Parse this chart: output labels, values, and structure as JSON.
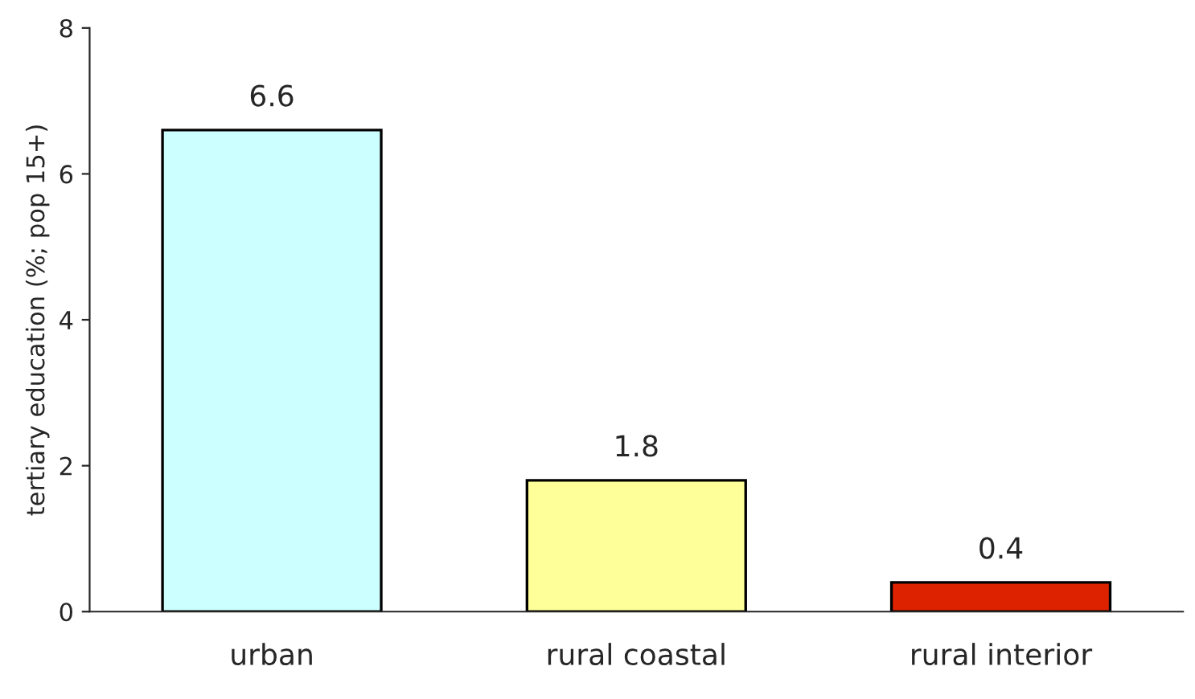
{
  "chart_data": {
    "type": "bar",
    "ylabel": "tertiary education (%; pop 15+)",
    "categories": [
      "urban",
      "rural coastal",
      "rural interior"
    ],
    "values": [
      6.6,
      1.8,
      0.4
    ],
    "colors": [
      "#ccffff",
      "#ffff99",
      "#dd2200"
    ],
    "data_labels": true,
    "ylim": [
      0,
      8
    ],
    "yticks": [
      0,
      2,
      4,
      6,
      8
    ],
    "grid": false
  }
}
